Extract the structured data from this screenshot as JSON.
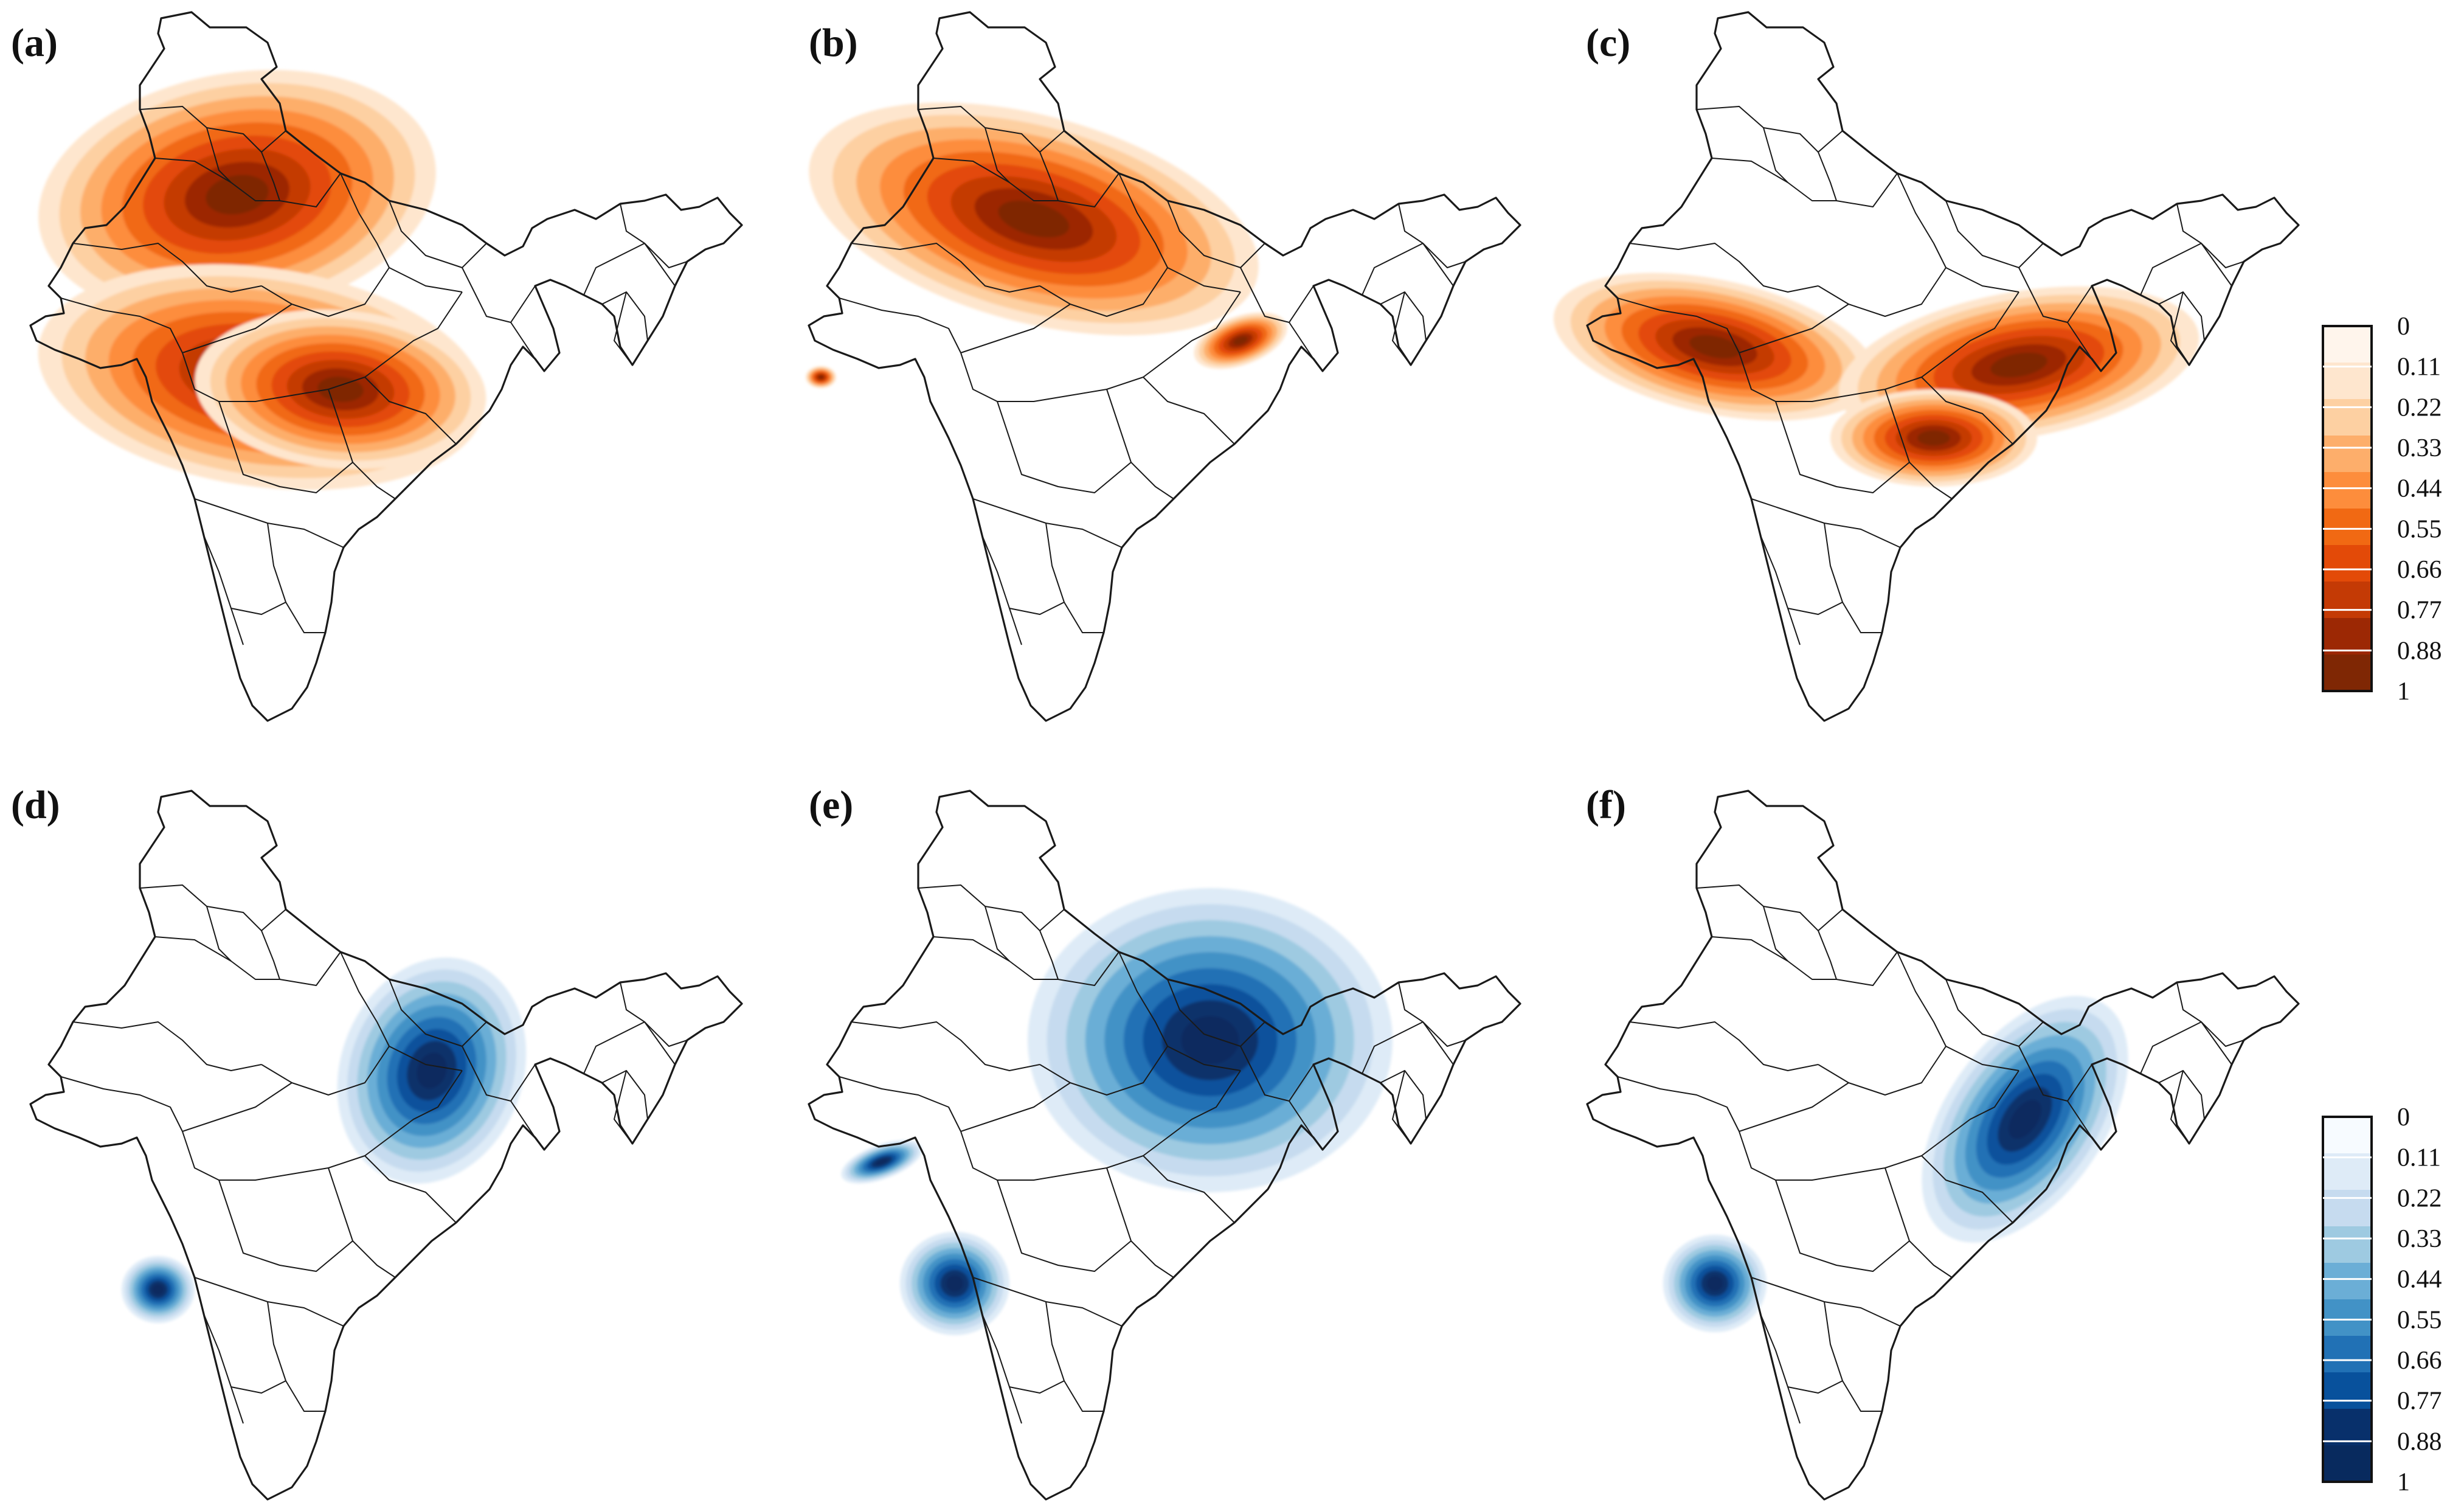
{
  "figure": {
    "panels": [
      {
        "id": "a",
        "label": "(a)",
        "palette": "orange"
      },
      {
        "id": "b",
        "label": "(b)",
        "palette": "orange"
      },
      {
        "id": "c",
        "label": "(c)",
        "palette": "orange"
      },
      {
        "id": "d",
        "label": "(d)",
        "palette": "blue"
      },
      {
        "id": "e",
        "label": "(e)",
        "palette": "blue"
      },
      {
        "id": "f",
        "label": "(f)",
        "palette": "blue"
      }
    ],
    "legends": [
      {
        "palette": "orange",
        "ticks": [
          "0",
          "0.11",
          "0.22",
          "0.33",
          "0.44",
          "0.55",
          "0.66",
          "0.77",
          "0.88",
          "1"
        ]
      },
      {
        "palette": "blue",
        "ticks": [
          "0",
          "0.11",
          "0.22",
          "0.33",
          "0.44",
          "0.55",
          "0.66",
          "0.77",
          "0.88",
          "1"
        ]
      }
    ],
    "colors": {
      "orange": [
        "#fff5ec",
        "#fee6ce",
        "#fdd0a2",
        "#fdae6b",
        "#fd8d3c",
        "#f16913",
        "#e34a08",
        "#c43a05",
        "#9c2804",
        "#7f2704"
      ],
      "blue": [
        "#f7fbff",
        "#deebf7",
        "#c6dbef",
        "#9ecae1",
        "#6baed6",
        "#4292c6",
        "#2171b5",
        "#08519c",
        "#08306b",
        "#082a5e"
      ]
    }
  }
}
